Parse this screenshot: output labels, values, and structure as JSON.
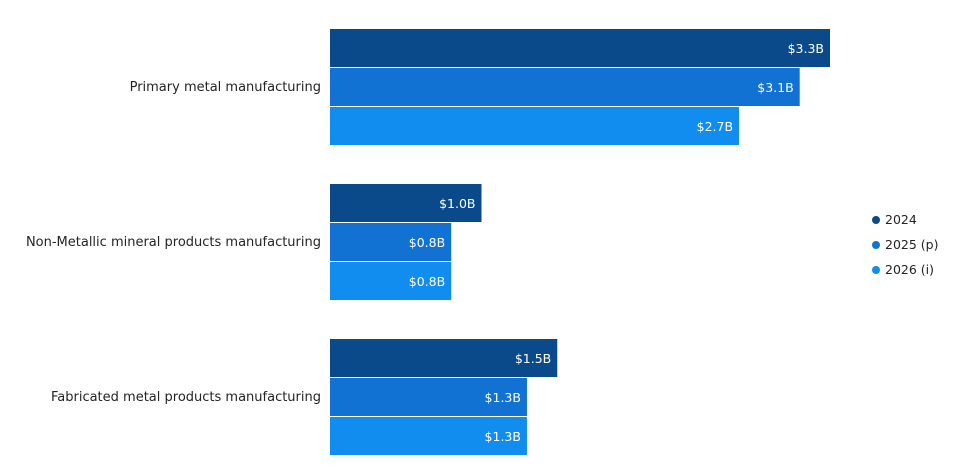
{
  "chart_data": {
    "type": "bar",
    "orientation": "horizontal",
    "categories": [
      "Primary metal manufacturing",
      "Non-Metallic mineral products manufacturing",
      "Fabricated metal products manufacturing"
    ],
    "series": [
      {
        "name": "2024",
        "color": "#0b4a8a",
        "values": [
          3.3,
          1.0,
          1.5
        ],
        "labels": [
          "$3.3B",
          "$1.0B",
          "$1.5B"
        ]
      },
      {
        "name": "2025 (p)",
        "color": "#1172d4",
        "values": [
          3.1,
          0.8,
          1.3
        ],
        "labels": [
          "$3.1B",
          "$0.8B",
          "$1.3B"
        ]
      },
      {
        "name": "2026 (i)",
        "color": "#118df0",
        "values": [
          2.7,
          0.8,
          1.3
        ],
        "labels": [
          "$2.7B",
          "$0.8B",
          "$1.3B"
        ]
      }
    ],
    "xlim": [
      0,
      3.3
    ],
    "legend_position": "right",
    "grid": false
  }
}
